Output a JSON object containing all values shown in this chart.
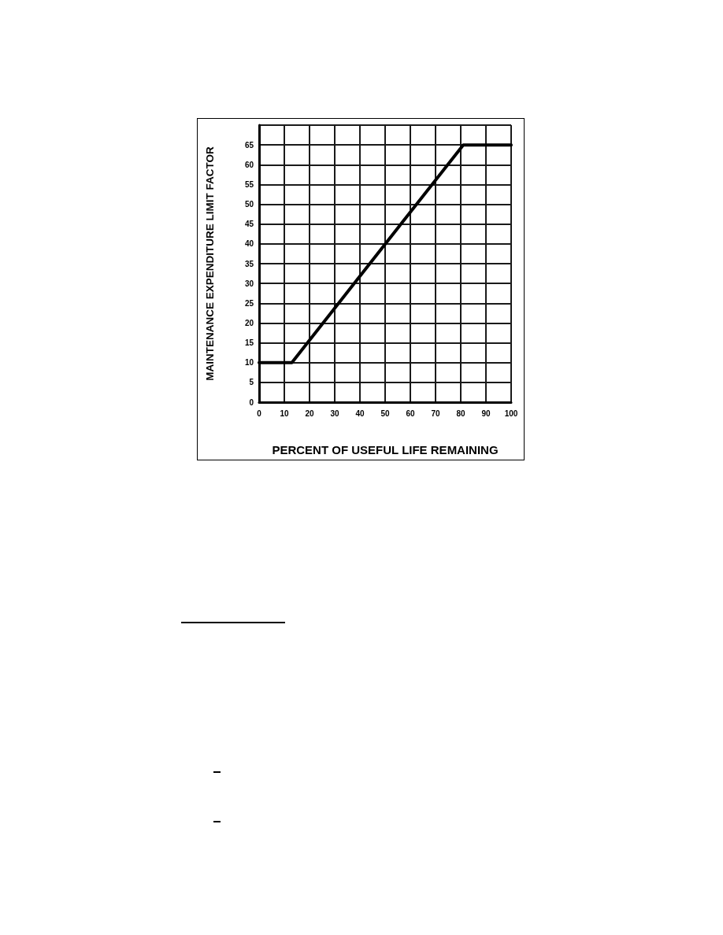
{
  "chart_data": {
    "type": "line",
    "xlabel": "PERCENT OF USEFUL LIFE REMAINING",
    "ylabel": "MAINTENANCE EXPENDITURE LIMIT FACTOR",
    "x": [
      0,
      13,
      81,
      100
    ],
    "values": [
      10,
      10,
      65,
      65
    ],
    "color": "#000000",
    "xlim": [
      0,
      100
    ],
    "xticks": [
      0,
      10,
      20,
      30,
      40,
      50,
      60,
      70,
      80,
      90,
      100
    ],
    "ylim": [
      0,
      70
    ],
    "yticks": [
      0,
      5,
      10,
      15,
      20,
      25,
      30,
      35,
      40,
      45,
      50,
      55,
      60,
      65,
      {
        "value": 70,
        "label": null
      }
    ],
    "grid": true,
    "marker": "none",
    "line_style": "solid"
  }
}
